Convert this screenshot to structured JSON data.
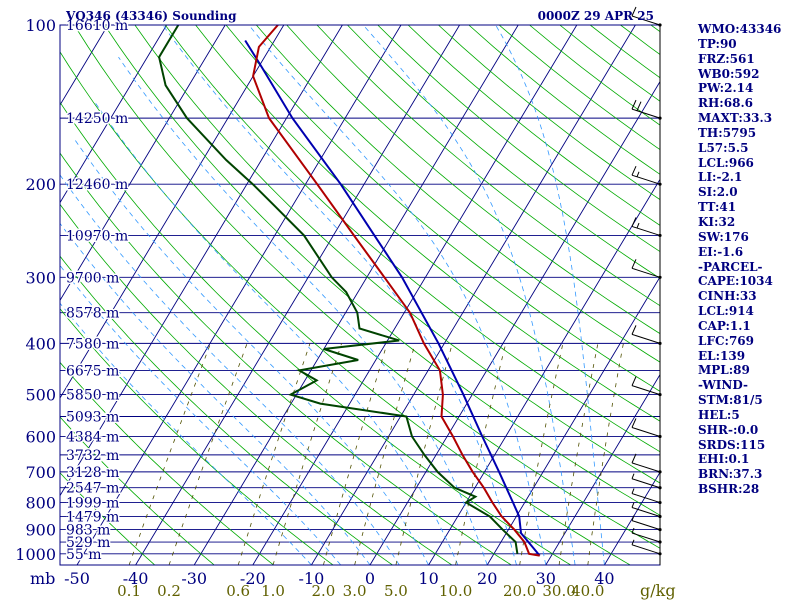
{
  "header": {
    "station": "VQ346 (43346) Sounding",
    "time": "0000Z 29 APR 25"
  },
  "indices": [
    "WMO:43346",
    "TP:90",
    "FRZ:561",
    "WB0:592",
    "PW:2.14",
    "RH:68.6",
    "MAXT:33.3",
    "TH:5795",
    "L57:5.5",
    "LCL:966",
    "LI:-2.1",
    "SI:2.0",
    "TT:41",
    "KI:32",
    "SW:176",
    "EI:-1.6",
    "-PARCEL-",
    "CAPE:1034",
    "CINH:33",
    "LCL:914",
    "CAP:1.1",
    "LFC:769",
    "EL:139",
    "MPL:89",
    "-WIND-",
    "STM:81/5",
    "HEL:5",
    "SHR-:0.0",
    "SRDS:115",
    "EHI:0.1",
    "BRN:37.3",
    "BSHR:28"
  ],
  "colors": {
    "frame": "#000080",
    "isotherm": "#000080",
    "dry_adiabat": "#00aa00",
    "moist_adiabat": "#3399ff",
    "mixing_ratio": "#505000",
    "temperature": "#b00000",
    "dewpoint": "#004400",
    "parcel": "#0000b0",
    "labels_blue": "#000080",
    "mixing_labels": "#606000"
  },
  "chart_data": {
    "type": "skew-t",
    "pressure_axis_label": "mb",
    "pressure_levels": [
      100,
      200,
      300,
      400,
      500,
      600,
      700,
      800,
      900,
      1000
    ],
    "height_labels": [
      {
        "p": 100,
        "text": "16610 m"
      },
      {
        "p": 150,
        "text": "14250 m"
      },
      {
        "p": 200,
        "text": "12460 m"
      },
      {
        "p": 250,
        "text": "10970 m"
      },
      {
        "p": 300,
        "text": "9700 m"
      },
      {
        "p": 350,
        "text": "8578 m"
      },
      {
        "p": 400,
        "text": "7580 m"
      },
      {
        "p": 450,
        "text": "6675 m"
      },
      {
        "p": 500,
        "text": "5850 m"
      },
      {
        "p": 550,
        "text": "5093 m"
      },
      {
        "p": 600,
        "text": "4384 m"
      },
      {
        "p": 650,
        "text": "3732 m"
      },
      {
        "p": 700,
        "text": "3128 m"
      },
      {
        "p": 750,
        "text": "2547 m"
      },
      {
        "p": 800,
        "text": "1999 m"
      },
      {
        "p": 850,
        "text": "1479 m"
      },
      {
        "p": 900,
        "text": "983 m"
      },
      {
        "p": 950,
        "text": "529 m"
      },
      {
        "p": 1000,
        "text": "55 m"
      }
    ],
    "temperature_ticks": [
      -50,
      -40,
      -30,
      -20,
      -10,
      0,
      10,
      20,
      30,
      40
    ],
    "temperature_tick_labels": [
      "-50",
      "-40",
      "-30",
      "-20",
      "-10",
      "0",
      "10",
      "20",
      "30",
      "40"
    ],
    "mixing_ratio_ticks": [
      0.1,
      0.2,
      0.6,
      1.0,
      2.0,
      3.0,
      5.0,
      10.0,
      20.0,
      30.0,
      40.0
    ],
    "mixing_ratio_labels": [
      "0.1",
      "0.2",
      "0.6",
      "1.0",
      "2.0",
      "3.0",
      "5.0",
      "10.0",
      "20.0",
      "30.0",
      "40.0"
    ],
    "mixing_ratio_unit": "g/kg",
    "temperature_profile": [
      {
        "p": 1008,
        "t": 28.0
      },
      {
        "p": 1000,
        "t": 26.0
      },
      {
        "p": 950,
        "t": 24.0
      },
      {
        "p": 900,
        "t": 21.0
      },
      {
        "p": 850,
        "t": 17.5
      },
      {
        "p": 800,
        "t": 14.5
      },
      {
        "p": 750,
        "t": 11.5
      },
      {
        "p": 700,
        "t": 8.0
      },
      {
        "p": 650,
        "t": 4.5
      },
      {
        "p": 600,
        "t": 1.0
      },
      {
        "p": 550,
        "t": -3.0
      },
      {
        "p": 500,
        "t": -5.0
      },
      {
        "p": 450,
        "t": -8.0
      },
      {
        "p": 400,
        "t": -13.5
      },
      {
        "p": 350,
        "t": -19.0
      },
      {
        "p": 300,
        "t": -27.0
      },
      {
        "p": 250,
        "t": -36.5
      },
      {
        "p": 200,
        "t": -48.0
      },
      {
        "p": 150,
        "t": -63.0
      },
      {
        "p": 125,
        "t": -70.0
      },
      {
        "p": 110,
        "t": -72.0
      },
      {
        "p": 100,
        "t": -71.0
      }
    ],
    "dewpoint_profile": [
      {
        "p": 1000,
        "td": 24.0
      },
      {
        "p": 950,
        "td": 22.5
      },
      {
        "p": 900,
        "td": 19.0
      },
      {
        "p": 850,
        "td": 15.5
      },
      {
        "p": 800,
        "td": 10.0
      },
      {
        "p": 780,
        "td": 11.0
      },
      {
        "p": 750,
        "td": 6.5
      },
      {
        "p": 700,
        "td": 2.0
      },
      {
        "p": 650,
        "td": -2.0
      },
      {
        "p": 600,
        "td": -6.0
      },
      {
        "p": 550,
        "td": -9.0
      },
      {
        "p": 520,
        "td": -25.0
      },
      {
        "p": 500,
        "td": -31.0
      },
      {
        "p": 470,
        "td": -28.0
      },
      {
        "p": 450,
        "td": -32.0
      },
      {
        "p": 430,
        "td": -23.0
      },
      {
        "p": 410,
        "td": -30.0
      },
      {
        "p": 395,
        "td": -18.0
      },
      {
        "p": 375,
        "td": -26.0
      },
      {
        "p": 350,
        "td": -28.0
      },
      {
        "p": 320,
        "td": -32.0
      },
      {
        "p": 300,
        "td": -36.0
      },
      {
        "p": 250,
        "td": -45.0
      },
      {
        "p": 220,
        "td": -53.0
      },
      {
        "p": 200,
        "td": -59.0
      },
      {
        "p": 180,
        "td": -66.0
      },
      {
        "p": 150,
        "td": -77.0
      },
      {
        "p": 130,
        "td": -84.0
      },
      {
        "p": 115,
        "td": -88.0
      },
      {
        "p": 100,
        "td": -88.0
      }
    ],
    "parcel_profile": [
      {
        "p": 1008,
        "t": 28.0
      },
      {
        "p": 914,
        "t": 22.5
      },
      {
        "p": 850,
        "t": 20.5
      },
      {
        "p": 800,
        "t": 18.0
      },
      {
        "p": 700,
        "t": 12.5
      },
      {
        "p": 600,
        "t": 6.0
      },
      {
        "p": 500,
        "t": -1.5
      },
      {
        "p": 400,
        "t": -11.0
      },
      {
        "p": 300,
        "t": -24.0
      },
      {
        "p": 250,
        "t": -33.0
      },
      {
        "p": 200,
        "t": -44.0
      },
      {
        "p": 150,
        "t": -59.0
      },
      {
        "p": 120,
        "t": -69.5
      },
      {
        "p": 107,
        "t": -75.0
      }
    ],
    "wind_profile": [
      {
        "p": 1000,
        "spd": 5
      },
      {
        "p": 950,
        "spd": 5
      },
      {
        "p": 900,
        "spd": 5
      },
      {
        "p": 850,
        "spd": 5
      },
      {
        "p": 800,
        "spd": 5
      },
      {
        "p": 750,
        "spd": 5
      },
      {
        "p": 700,
        "spd": 10
      },
      {
        "p": 600,
        "spd": 10
      },
      {
        "p": 500,
        "spd": 10
      },
      {
        "p": 400,
        "spd": 10
      },
      {
        "p": 300,
        "spd": 10
      },
      {
        "p": 250,
        "spd": 15
      },
      {
        "p": 200,
        "spd": 15
      },
      {
        "p": 150,
        "spd": 20
      },
      {
        "p": 100,
        "spd": 10
      }
    ]
  }
}
